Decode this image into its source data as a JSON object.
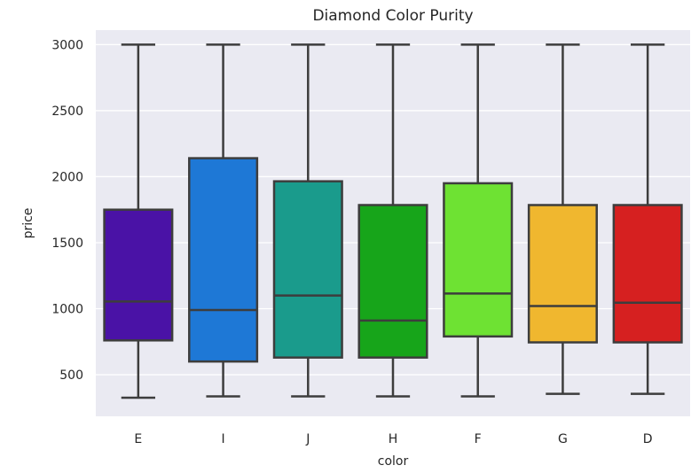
{
  "chart_data": {
    "type": "box",
    "title": "Diamond Color Purity",
    "xlabel": "color",
    "ylabel": "price",
    "categories": [
      "E",
      "I",
      "J",
      "H",
      "F",
      "G",
      "D"
    ],
    "colors": [
      "#4a12a6",
      "#1e78d6",
      "#1a9b8c",
      "#17a51a",
      "#6ee233",
      "#f0b72f",
      "#d62020"
    ],
    "boxes": [
      {
        "category": "E",
        "whisker_low": 326,
        "q1": 760,
        "median": 1055,
        "q3": 1750,
        "whisker_high": 3000
      },
      {
        "category": "I",
        "whisker_low": 336,
        "q1": 600,
        "median": 990,
        "q3": 2140,
        "whisker_high": 3000
      },
      {
        "category": "J",
        "whisker_low": 336,
        "q1": 630,
        "median": 1100,
        "q3": 1965,
        "whisker_high": 3000
      },
      {
        "category": "H",
        "whisker_low": 336,
        "q1": 630,
        "median": 910,
        "q3": 1785,
        "whisker_high": 3000
      },
      {
        "category": "F",
        "whisker_low": 336,
        "q1": 790,
        "median": 1115,
        "q3": 1950,
        "whisker_high": 3000
      },
      {
        "category": "G",
        "whisker_low": 355,
        "q1": 745,
        "median": 1020,
        "q3": 1785,
        "whisker_high": 3000
      },
      {
        "category": "D",
        "whisker_low": 355,
        "q1": 745,
        "median": 1045,
        "q3": 1785,
        "whisker_high": 3000
      }
    ],
    "yticks": [
      500,
      1000,
      1500,
      2000,
      2500,
      3000
    ],
    "ylim": [
      185,
      3110
    ],
    "grid": true,
    "background": "#eaeaf2",
    "edge_color": "#3d3d3d"
  }
}
